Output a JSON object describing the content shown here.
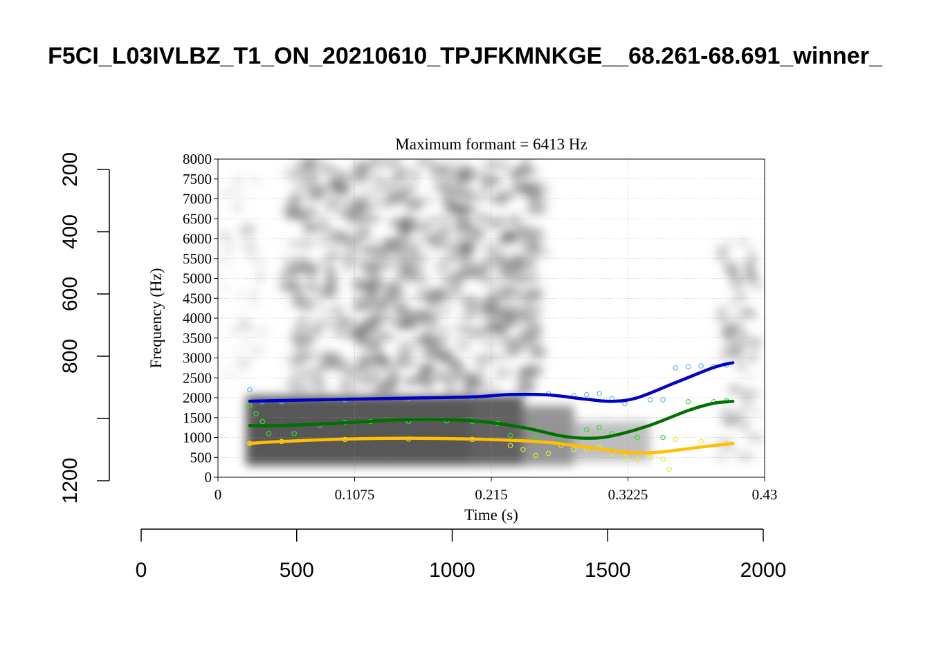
{
  "title": "F5CI_L03IVLBZ_T1_ON_20210610_TPJFKMNKGE__68.261-68.691_winner_",
  "chart_data": [
    {
      "type": "line",
      "role": "outer-r-axes",
      "x_axis": {
        "ticks": [
          0,
          500,
          1000,
          1500,
          2000
        ],
        "range": [
          0,
          2000
        ]
      },
      "y_axis": {
        "ticks": [
          200,
          400,
          600,
          800,
          1000,
          1200
        ],
        "tick_labels": [
          "200",
          "400",
          "600",
          "800",
          "",
          "1200"
        ],
        "range": [
          200,
          1200
        ],
        "reversed": true
      }
    },
    {
      "type": "line",
      "role": "praat-spectrogram-with-formant-tracks",
      "subtitle": "Maximum formant  =  6413 Hz",
      "xlabel": "Time (s)",
      "ylabel": "Frequency (Hz)",
      "xlim": [
        0,
        0.43
      ],
      "ylim": [
        0,
        8000
      ],
      "x_ticks": [
        0,
        0.1075,
        0.215,
        0.3225,
        0.43
      ],
      "x_tick_labels": [
        "0",
        "0.1075",
        "0.215",
        "0.3225",
        "0.43"
      ],
      "y_ticks": [
        0,
        500,
        1000,
        1500,
        2000,
        2500,
        3000,
        3500,
        4000,
        4500,
        5000,
        5500,
        6000,
        6500,
        7000,
        7500,
        8000
      ],
      "grid": true,
      "background": "grayscale spectrogram",
      "series": [
        {
          "color": "#0000c8",
          "style": "smooth-line",
          "x": [
            0.025,
            0.05,
            0.1,
            0.15,
            0.2,
            0.23,
            0.26,
            0.29,
            0.31,
            0.33,
            0.36,
            0.39,
            0.405
          ],
          "y": [
            1910,
            1930,
            1960,
            1990,
            2020,
            2080,
            2070,
            1960,
            1910,
            2000,
            2380,
            2760,
            2880
          ]
        },
        {
          "color": "#007000",
          "style": "smooth-line",
          "x": [
            0.025,
            0.05,
            0.1,
            0.15,
            0.2,
            0.24,
            0.27,
            0.29,
            0.31,
            0.34,
            0.37,
            0.39,
            0.405
          ],
          "y": [
            1300,
            1300,
            1370,
            1450,
            1420,
            1250,
            1040,
            980,
            1040,
            1310,
            1680,
            1860,
            1910
          ]
        },
        {
          "color": "#ffc000",
          "style": "smooth-line",
          "x": [
            0.025,
            0.05,
            0.1,
            0.15,
            0.2,
            0.25,
            0.28,
            0.31,
            0.33,
            0.35,
            0.38,
            0.405
          ],
          "y": [
            850,
            900,
            960,
            980,
            960,
            900,
            800,
            670,
            610,
            640,
            760,
            850
          ]
        },
        {
          "color": "#5ab4f0",
          "style": "raw-circles",
          "x": [
            0.025,
            0.035,
            0.05,
            0.1,
            0.15,
            0.2,
            0.24,
            0.26,
            0.28,
            0.29,
            0.3,
            0.31,
            0.32,
            0.34,
            0.35,
            0.36,
            0.37,
            0.38,
            0.39,
            0.4
          ],
          "y": [
            2200,
            1900,
            1900,
            1950,
            1990,
            2020,
            2050,
            2100,
            2050,
            2080,
            2100,
            1980,
            1850,
            1950,
            1950,
            2750,
            2780,
            2800,
            2780,
            2820
          ]
        },
        {
          "color": "#32dc32",
          "style": "raw-circles",
          "x": [
            0.025,
            0.03,
            0.035,
            0.04,
            0.06,
            0.08,
            0.1,
            0.12,
            0.15,
            0.18,
            0.2,
            0.22,
            0.23,
            0.25,
            0.27,
            0.29,
            0.3,
            0.31,
            0.33,
            0.35,
            0.37,
            0.39,
            0.4
          ],
          "y": [
            1800,
            1600,
            1400,
            1100,
            1100,
            1300,
            1380,
            1400,
            1400,
            1420,
            1400,
            1350,
            1050,
            1000,
            980,
            1200,
            1250,
            1100,
            1000,
            1000,
            1900,
            1900,
            1920
          ]
        },
        {
          "color": "#ebe632",
          "style": "raw-circles",
          "x": [
            0.025,
            0.05,
            0.1,
            0.15,
            0.2,
            0.23,
            0.24,
            0.25,
            0.26,
            0.27,
            0.28,
            0.29,
            0.3,
            0.31,
            0.32,
            0.33,
            0.34,
            0.35,
            0.355,
            0.36,
            0.38,
            0.4
          ],
          "y": [
            850,
            900,
            950,
            960,
            950,
            800,
            700,
            550,
            600,
            800,
            700,
            700,
            750,
            600,
            500,
            450,
            500,
            450,
            200,
            950,
            900,
            850
          ]
        }
      ]
    }
  ]
}
